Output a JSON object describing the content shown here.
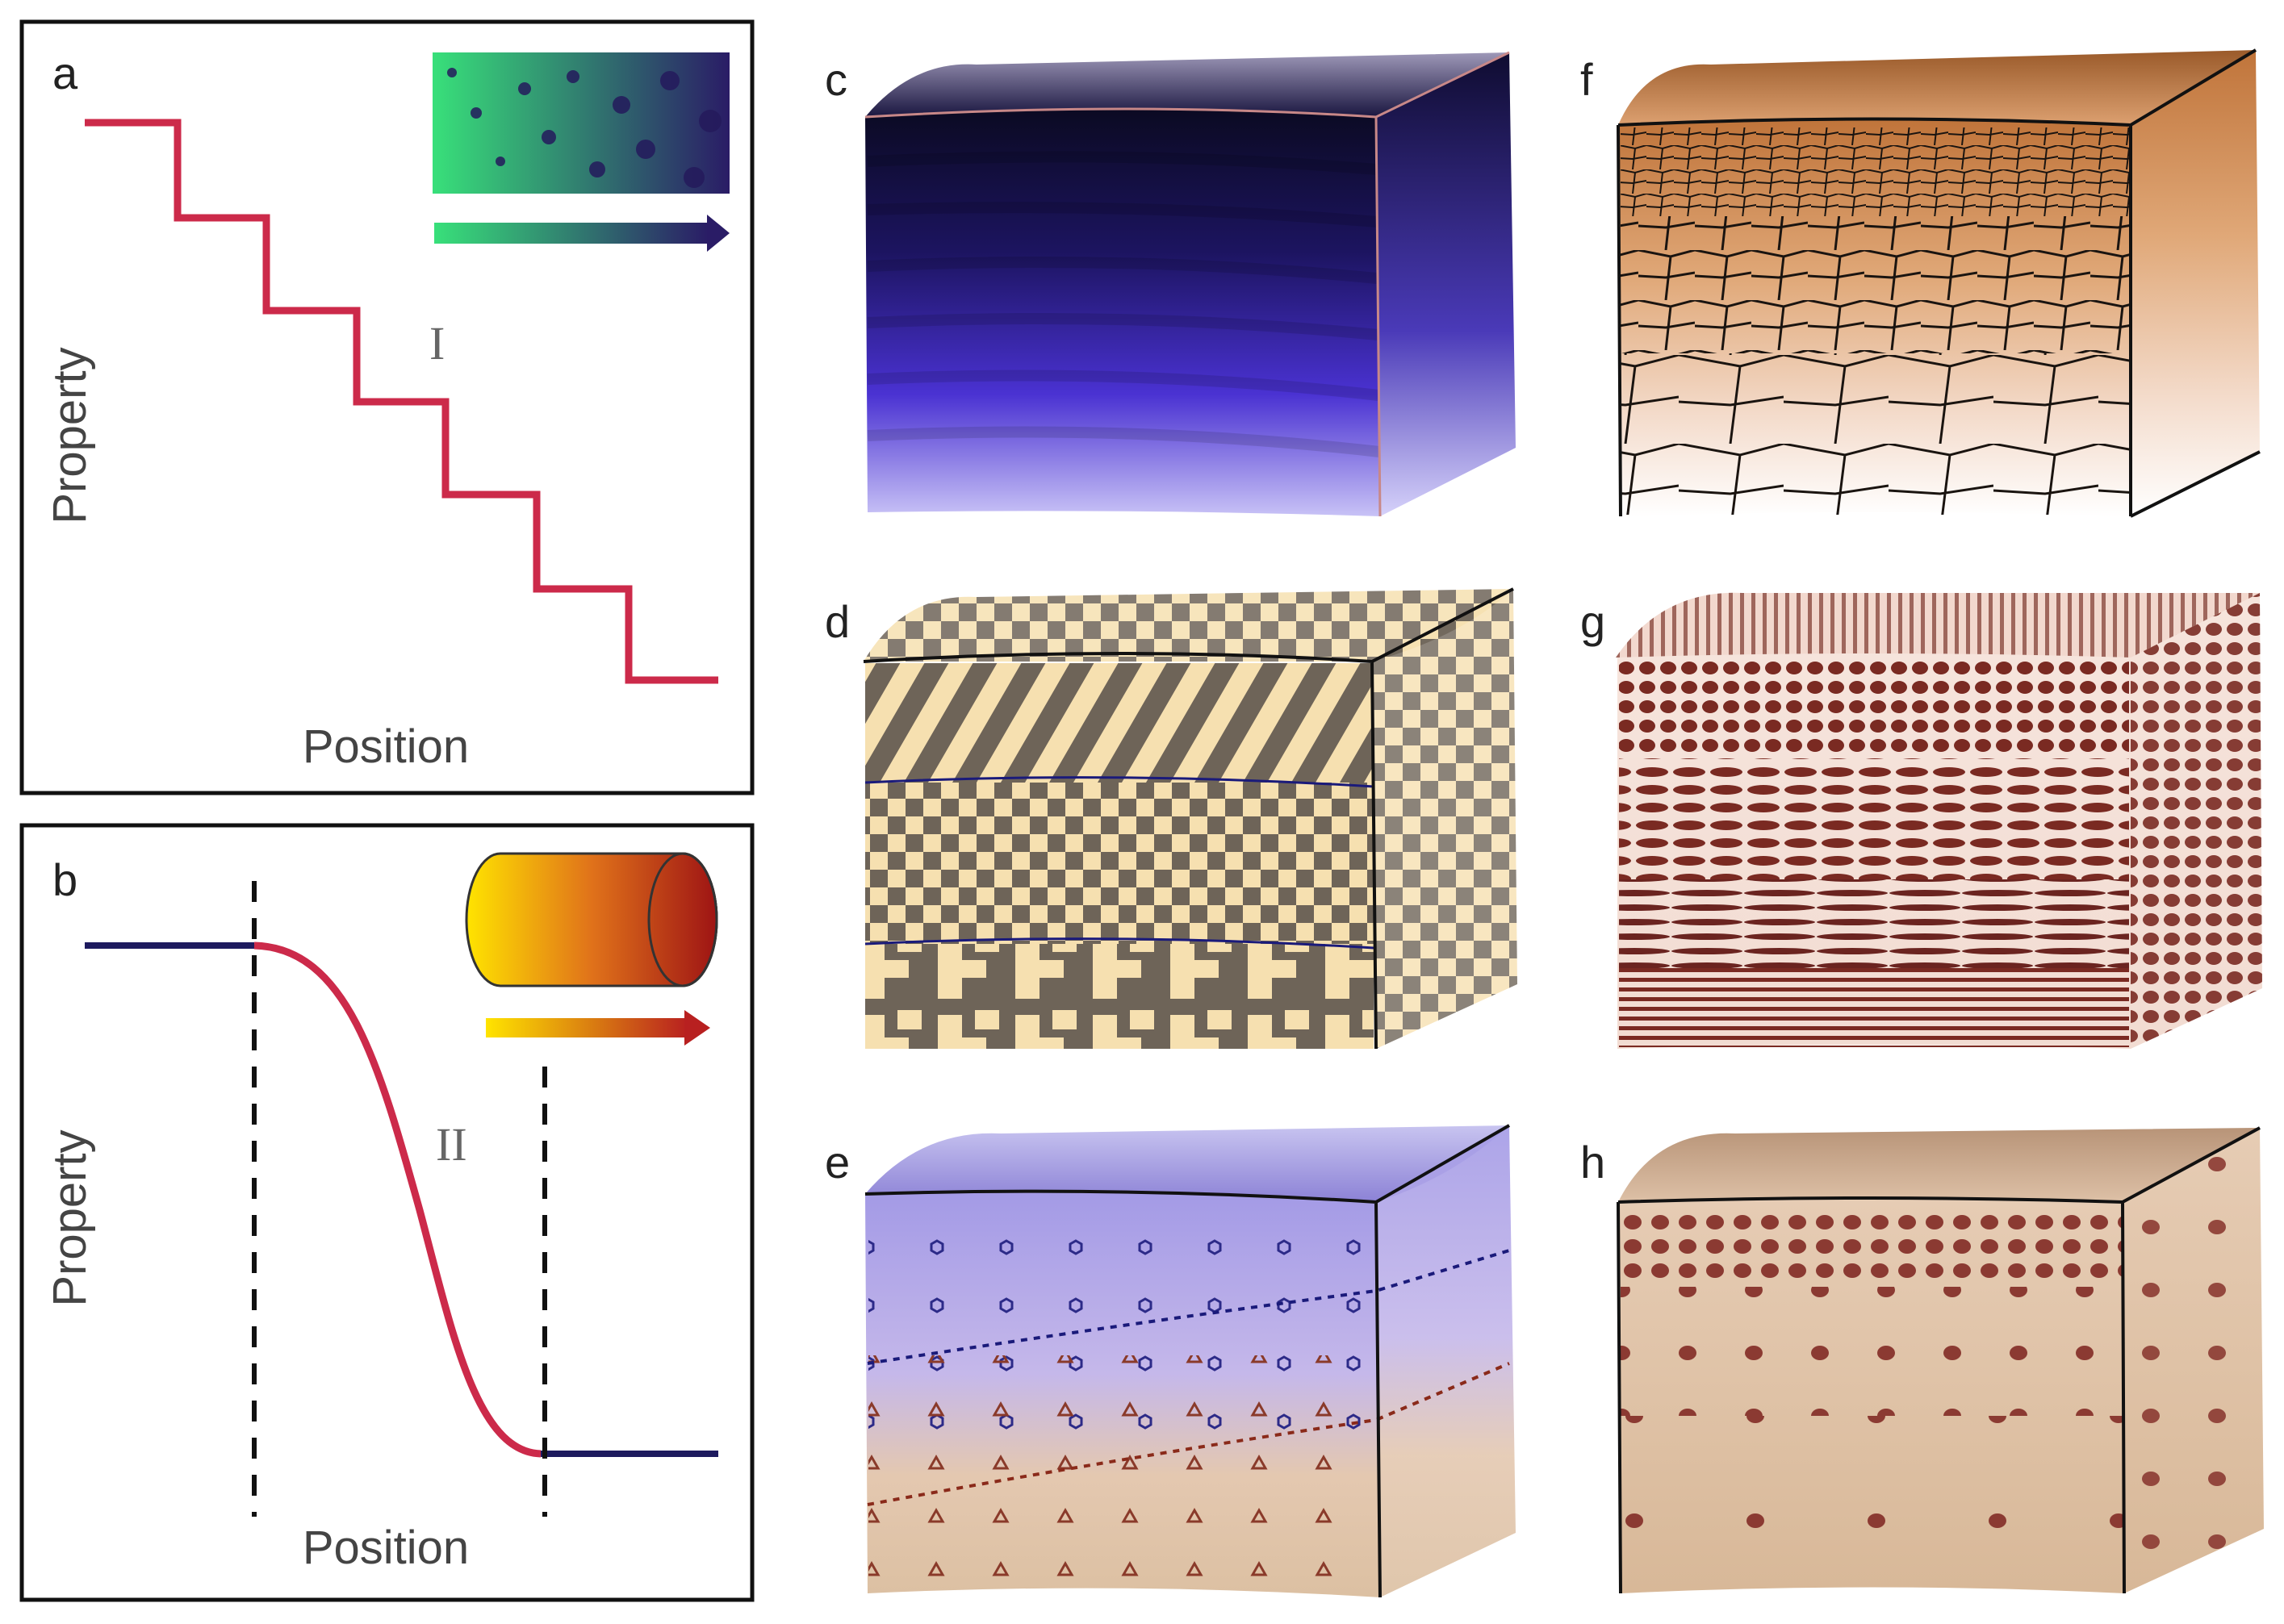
{
  "panels": {
    "a": {
      "label": "a",
      "xlabel": "Position",
      "ylabel": "Property",
      "region": "I"
    },
    "b": {
      "label": "b",
      "xlabel": "Position",
      "ylabel": "Property",
      "region": "II"
    },
    "c": {
      "label": "c"
    },
    "d": {
      "label": "d"
    },
    "e": {
      "label": "e"
    },
    "f": {
      "label": "f"
    },
    "g": {
      "label": "g"
    },
    "h": {
      "label": "h"
    }
  },
  "colors": {
    "curve": "#cc2a4a",
    "flat": "#1d1a5e",
    "c_top": "#0c0a28",
    "c_bottom": "#c6c1f4",
    "f_top": "#c07a40",
    "g_ink": "#6b2a24",
    "h_bg": "#dcc0a6",
    "h_dot": "#8b3a32"
  }
}
